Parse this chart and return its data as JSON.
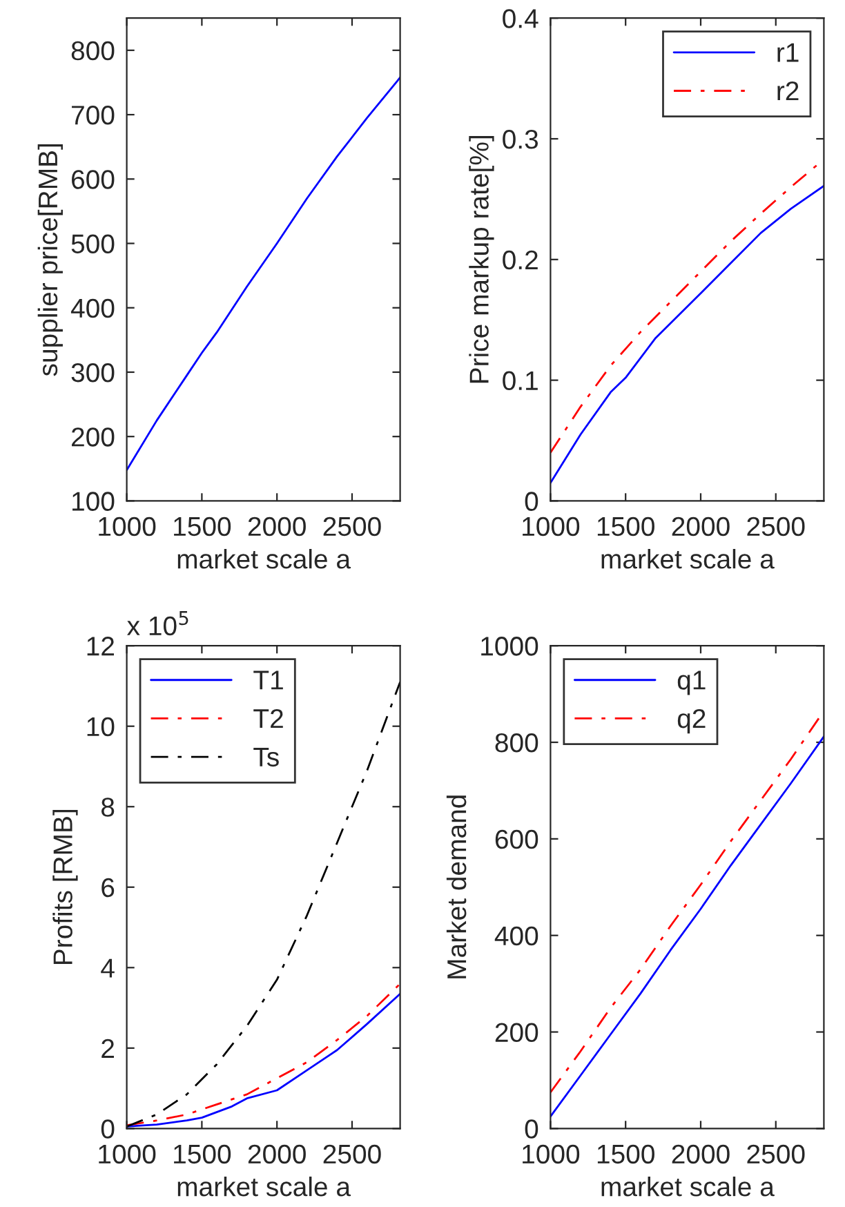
{
  "chart_data": [
    {
      "type": "line",
      "xlabel": "market scale a",
      "ylabel": "supplier price[RMB]",
      "xlim": [
        1000,
        2820
      ],
      "xticks": [
        1000,
        1500,
        2000,
        2500
      ],
      "ylim": [
        100,
        850
      ],
      "yticks": [
        100,
        200,
        300,
        400,
        500,
        600,
        700,
        800
      ],
      "grid": false,
      "legend": false,
      "series": [
        {
          "color": "#0000ff",
          "line_style": "solid",
          "x": [
            1000,
            1200,
            1400,
            1500,
            1600,
            1800,
            2000,
            2200,
            2400,
            2600,
            2800,
            2820
          ],
          "values": [
            148,
            225,
            295,
            330,
            362,
            433,
            500,
            570,
            635,
            695,
            752,
            758
          ]
        }
      ]
    },
    {
      "type": "line",
      "xlabel": "market scale a",
      "ylabel": "Price markup rate[%]",
      "xlim": [
        1000,
        2820
      ],
      "xticks": [
        1000,
        1500,
        2000,
        2500
      ],
      "ylim": [
        0,
        0.4
      ],
      "yticks": [
        0,
        0.1,
        0.2,
        0.3,
        0.4
      ],
      "grid": false,
      "legend": "top right",
      "series": [
        {
          "name": "r1",
          "color": "#0000ff",
          "line_style": "solid",
          "x": [
            1000,
            1200,
            1400,
            1500,
            1700,
            2000,
            2200,
            2400,
            2600,
            2820
          ],
          "values": [
            0.015,
            0.055,
            0.09,
            0.102,
            0.135,
            0.172,
            0.197,
            0.222,
            0.242,
            0.261
          ]
        },
        {
          "name": "r2",
          "color": "#ff0000",
          "line_style": "dashed",
          "x": [
            1000,
            1200,
            1400,
            1600,
            1800,
            2000,
            2200,
            2400,
            2600,
            2820
          ],
          "values": [
            0.04,
            0.078,
            0.112,
            0.14,
            0.165,
            0.19,
            0.215,
            0.238,
            0.26,
            0.283
          ]
        }
      ]
    },
    {
      "type": "line",
      "xlabel": "market scale a",
      "ylabel": "Profits [RMB]",
      "annotations": [
        "x 10$^{5}$"
      ],
      "xlim": [
        1000,
        2820
      ],
      "xticks": [
        1000,
        1500,
        2000,
        2500
      ],
      "ylim": [
        0,
        12
      ],
      "yticks": [
        0,
        2,
        4,
        6,
        8,
        10,
        12
      ],
      "grid": false,
      "legend": "top left",
      "series": [
        {
          "name": "T1",
          "color": "#0000ff",
          "line_style": "solid",
          "x": [
            1000,
            1200,
            1400,
            1500,
            1700,
            1800,
            2000,
            2200,
            2400,
            2600,
            2820
          ],
          "values": [
            0.05,
            0.1,
            0.2,
            0.27,
            0.55,
            0.75,
            0.95,
            1.45,
            1.95,
            2.6,
            3.35
          ]
        },
        {
          "name": "T2",
          "color": "#ff0000",
          "line_style": "dashed",
          "x": [
            1000,
            1200,
            1400,
            1600,
            1800,
            2000,
            2200,
            2400,
            2600,
            2820
          ],
          "values": [
            0.08,
            0.2,
            0.35,
            0.6,
            0.85,
            1.25,
            1.65,
            2.2,
            2.8,
            3.6
          ]
        },
        {
          "name": "Ts",
          "color": "#000000",
          "line_style": "dashed",
          "x": [
            1000,
            1200,
            1400,
            1600,
            1800,
            2000,
            2200,
            2400,
            2600,
            2700,
            2820
          ],
          "values": [
            0.05,
            0.35,
            0.85,
            1.6,
            2.55,
            3.7,
            5.3,
            7.1,
            8.9,
            9.9,
            11.1
          ]
        }
      ]
    },
    {
      "type": "line",
      "xlabel": "market scale a",
      "ylabel": "Market demand",
      "xlim": [
        1000,
        2820
      ],
      "xticks": [
        1000,
        1500,
        2000,
        2500
      ],
      "ylim": [
        0,
        1000
      ],
      "yticks": [
        0,
        200,
        400,
        600,
        800,
        1000
      ],
      "grid": false,
      "legend": "top left",
      "series": [
        {
          "name": "q1",
          "color": "#0000ff",
          "line_style": "solid",
          "x": [
            1000,
            1200,
            1400,
            1600,
            1800,
            2000,
            2200,
            2400,
            2600,
            2820
          ],
          "values": [
            25,
            110,
            195,
            280,
            370,
            455,
            545,
            630,
            715,
            812
          ]
        },
        {
          "name": "q2",
          "color": "#ff0000",
          "line_style": "dashed",
          "x": [
            1000,
            1200,
            1400,
            1600,
            1800,
            2000,
            2200,
            2400,
            2600,
            2820
          ],
          "values": [
            75,
            160,
            250,
            330,
            420,
            505,
            595,
            680,
            765,
            865
          ]
        }
      ]
    }
  ]
}
